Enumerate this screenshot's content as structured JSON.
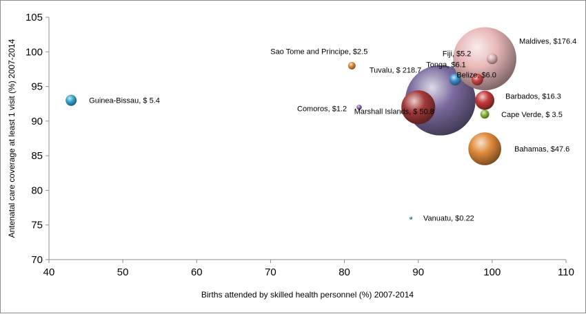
{
  "chart_data": {
    "type": "scatter",
    "subtype": "bubble",
    "title": "",
    "xlabel": "Births attended by skilled health personnel (%) 2007-2014",
    "ylabel": "Antenatal care coverage at least 1 visit (%) 2007-2014",
    "xlim": [
      40,
      110
    ],
    "ylim": [
      70,
      105
    ],
    "xticks": [
      40,
      50,
      60,
      70,
      80,
      90,
      100,
      110
    ],
    "yticks": [
      70,
      75,
      80,
      85,
      90,
      95,
      100,
      105
    ],
    "grid": false,
    "legend": "none",
    "points": [
      {
        "country": "Tuvalu",
        "x": 93,
        "y": 93,
        "size": 218.7,
        "label": "Tuvalu, $ 218.7",
        "color": "#7a6a9e"
      },
      {
        "country": "Maldives",
        "x": 99,
        "y": 99,
        "size": 176.4,
        "label": "Maldives, $176.4",
        "color": "#e8b8b8"
      },
      {
        "country": "Marshall Islands",
        "x": 90,
        "y": 92,
        "size": 50.8,
        "label": "Marshall Islands, $ 50.8",
        "color": "#a33a3a"
      },
      {
        "country": "Bahamas",
        "x": 99,
        "y": 86,
        "size": 47.6,
        "label": "Bahamas, $47.6",
        "color": "#e08a3a"
      },
      {
        "country": "Barbados",
        "x": 99,
        "y": 93,
        "size": 16.3,
        "label": "Barbados, $16.3",
        "color": "#c23a3a"
      },
      {
        "country": "Tonga",
        "x": 95,
        "y": 96,
        "size": 6.1,
        "label": "Tonga, $6.1",
        "color": "#3a8fc9"
      },
      {
        "country": "Belize",
        "x": 98,
        "y": 96,
        "size": 6.0,
        "label": "Belize, $6.0",
        "color": "#d04545"
      },
      {
        "country": "Guinea-Bissau",
        "x": 43,
        "y": 93,
        "size": 5.4,
        "label": "Guinea-Bissau, $ 5.4",
        "color": "#3aa6d0"
      },
      {
        "country": "Fiji",
        "x": 100,
        "y": 99,
        "size": 5.2,
        "label": "Fiji, $5.2",
        "color": "#d9b0b0"
      },
      {
        "country": "Cape Verde",
        "x": 99,
        "y": 91,
        "size": 3.5,
        "label": "Cape Verde, $ 3.5",
        "color": "#8ab83a"
      },
      {
        "country": "Sao Tome and Principe",
        "x": 81,
        "y": 98,
        "size": 2.5,
        "label": "Sao Tome and Principe, $2.5",
        "color": "#e08a3a"
      },
      {
        "country": "Comoros",
        "x": 82,
        "y": 92,
        "size": 1.2,
        "label": "Comoros, $1.2",
        "color": "#8a6ab0"
      },
      {
        "country": "Vanuatu",
        "x": 89,
        "y": 76,
        "size": 0.22,
        "label": "Vanuatu, $0.22",
        "color": "#3aa6b0"
      }
    ]
  }
}
